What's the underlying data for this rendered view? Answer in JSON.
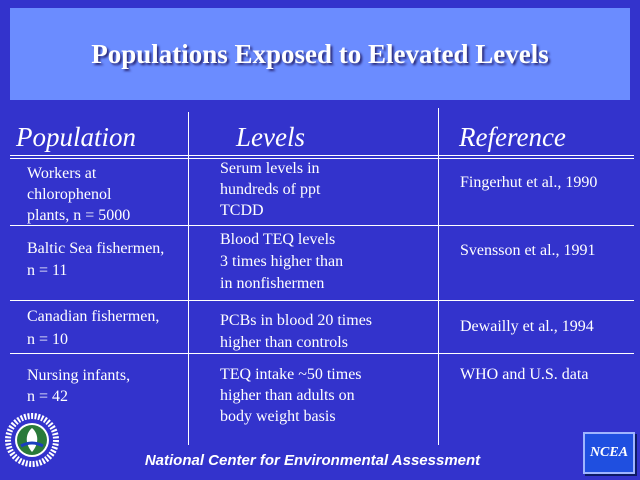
{
  "title": "Populations Exposed to Elevated Levels",
  "columns": [
    "Population",
    "Levels",
    "Reference"
  ],
  "rows": [
    {
      "population": "Workers at\nchlorophenol\nplants, n = 5000",
      "levels": "Serum levels in\nhundreds of ppt\nTCDD",
      "reference": "Fingerhut et al., 1990"
    },
    {
      "population": "Baltic Sea fishermen,\nn = 11",
      "levels": "Blood TEQ levels\n3 times higher than\nin nonfishermen",
      "reference": "Svensson et al., 1991"
    },
    {
      "population": "Canadian fishermen,\nn = 10",
      "levels": "PCBs in blood 20 times\nhigher than controls",
      "reference": "Dewailly et al., 1994"
    },
    {
      "population": "Nursing infants,\nn = 42",
      "levels": "TEQ intake ~50 times\nhigher than adults on\nbody weight basis",
      "reference": "WHO and U.S. data"
    }
  ],
  "footer": "National Center for Environmental Assessment",
  "logos": {
    "ncea": "NCEA",
    "epa": "epa-seal-icon"
  },
  "colors": {
    "background": "#3333cc",
    "title_box": "#6b8cff"
  }
}
